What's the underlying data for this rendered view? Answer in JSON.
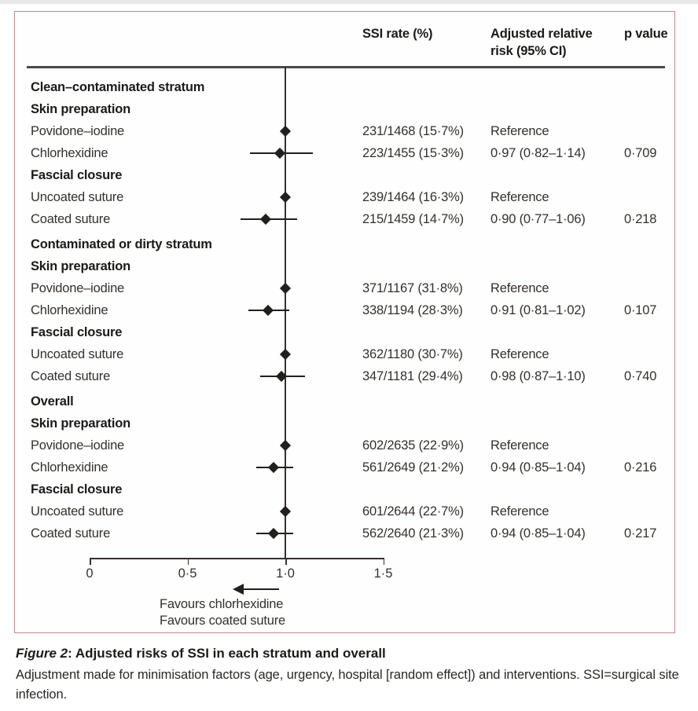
{
  "colors": {
    "panel_border": "#c5868f",
    "ink": "#221f1d",
    "text": "#35302c",
    "bold_text": "#1d1a18"
  },
  "header": {
    "col_ssi": "SSI rate (%)",
    "col_rr": "Adjusted relative risk (95% CI)",
    "col_p": "p value"
  },
  "chart_data": {
    "type": "forest",
    "xlabel": "Adjusted relative risk",
    "axis": {
      "min": 0,
      "max": 1.5,
      "tick_values": [
        0,
        0.5,
        1.0,
        1.5
      ],
      "tick_labels": [
        "0",
        "0·5",
        "1·0",
        "1·5"
      ],
      "reference_line": 1.0
    },
    "arrow": {
      "direction": "left",
      "labels": [
        "Favours chlorhexidine",
        "Favours coated suture"
      ]
    },
    "rows": [
      {
        "kind": "stratum",
        "label": "Clean–contaminated stratum"
      },
      {
        "kind": "subgroup",
        "label": "Skin preparation"
      },
      {
        "kind": "data",
        "label": "Povidone–iodine",
        "ssi": "231/1468 (15·7%)",
        "rr_text": "Reference",
        "p": "",
        "rr": 1.0,
        "lo": null,
        "hi": null
      },
      {
        "kind": "data",
        "label": "Chlorhexidine",
        "ssi": "223/1455 (15·3%)",
        "rr_text": "0·97 (0·82–1·14)",
        "p": "0·709",
        "rr": 0.97,
        "lo": 0.82,
        "hi": 1.14
      },
      {
        "kind": "subgroup",
        "label": "Fascial closure"
      },
      {
        "kind": "data",
        "label": "Uncoated suture",
        "ssi": "239/1464 (16·3%)",
        "rr_text": "Reference",
        "p": "",
        "rr": 1.0,
        "lo": null,
        "hi": null
      },
      {
        "kind": "data",
        "label": "Coated suture",
        "ssi": "215/1459 (14·7%)",
        "rr_text": "0·90 (0·77–1·06)",
        "p": "0·218",
        "rr": 0.9,
        "lo": 0.77,
        "hi": 1.06
      },
      {
        "kind": "stratum",
        "label": "Contaminated or dirty stratum"
      },
      {
        "kind": "subgroup",
        "label": "Skin preparation"
      },
      {
        "kind": "data",
        "label": "Povidone–iodine",
        "ssi": "371/1167 (31·8%)",
        "rr_text": "Reference",
        "p": "",
        "rr": 1.0,
        "lo": null,
        "hi": null
      },
      {
        "kind": "data",
        "label": "Chlorhexidine",
        "ssi": "338/1194 (28·3%)",
        "rr_text": "0·91 (0·81–1·02)",
        "p": "0·107",
        "rr": 0.91,
        "lo": 0.81,
        "hi": 1.02
      },
      {
        "kind": "subgroup",
        "label": "Fascial closure"
      },
      {
        "kind": "data",
        "label": "Uncoated suture",
        "ssi": "362/1180 (30·7%)",
        "rr_text": "Reference",
        "p": "",
        "rr": 1.0,
        "lo": null,
        "hi": null
      },
      {
        "kind": "data",
        "label": "Coated suture",
        "ssi": "347/1181 (29·4%)",
        "rr_text": "0·98 (0·87–1·10)",
        "p": "0·740",
        "rr": 0.98,
        "lo": 0.87,
        "hi": 1.1
      },
      {
        "kind": "stratum",
        "label": "Overall"
      },
      {
        "kind": "subgroup",
        "label": "Skin preparation"
      },
      {
        "kind": "data",
        "label": "Povidone–iodine",
        "ssi": "602/2635 (22·9%)",
        "rr_text": "Reference",
        "p": "",
        "rr": 1.0,
        "lo": null,
        "hi": null
      },
      {
        "kind": "data",
        "label": "Chlorhexidine",
        "ssi": "561/2649 (21·2%)",
        "rr_text": "0·94 (0·85–1·04)",
        "p": "0·216",
        "rr": 0.94,
        "lo": 0.85,
        "hi": 1.04
      },
      {
        "kind": "subgroup",
        "label": "Fascial closure"
      },
      {
        "kind": "data",
        "label": "Uncoated suture",
        "ssi": "601/2644 (22·7%)",
        "rr_text": "Reference",
        "p": "",
        "rr": 1.0,
        "lo": null,
        "hi": null
      },
      {
        "kind": "data",
        "label": "Coated suture",
        "ssi": "562/2640 (21·3%)",
        "rr_text": "0·94 (0·85–1·04)",
        "p": "0·217",
        "rr": 0.94,
        "lo": 0.85,
        "hi": 1.04
      }
    ]
  },
  "caption": {
    "figure_label": "Figure 2",
    "title": ": Adjusted risks of SSI in each stratum and overall",
    "body": "Adjustment made for minimisation factors (age, urgency, hospital [random effect]) and interventions. SSI=surgical site infection."
  }
}
